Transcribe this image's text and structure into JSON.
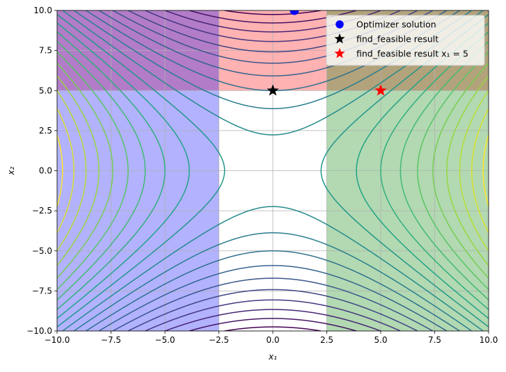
{
  "chart_data": {
    "type": "contour",
    "title": "",
    "xlabel": "x₁",
    "ylabel": "x₂",
    "xlim": [
      -10,
      10
    ],
    "ylim": [
      -10,
      10
    ],
    "xticks": [
      -10,
      -7.5,
      -5,
      -2.5,
      0,
      2.5,
      5,
      7.5,
      10
    ],
    "yticks": [
      -10,
      -7.5,
      -5,
      -2.5,
      0,
      2.5,
      5,
      7.5,
      10
    ],
    "xtick_labels": [
      "−10.0",
      "−7.5",
      "−5.0",
      "−2.5",
      "0.0",
      "2.5",
      "5.0",
      "7.5",
      "10.0"
    ],
    "ytick_labels": [
      "−10.0",
      "−7.5",
      "−5.0",
      "−2.5",
      "0.0",
      "2.5",
      "5.0",
      "7.5",
      "10.0"
    ],
    "grid": true,
    "legend_position": "top-right",
    "contour": {
      "function": "x1^2 - x2^2",
      "levels": [
        -95,
        -85,
        -75,
        -65,
        -55,
        -45,
        -35,
        -25,
        -15,
        -5,
        5,
        15,
        25,
        35,
        45,
        55,
        65,
        75,
        85,
        95
      ],
      "colormap": [
        "#440154",
        "#46327e",
        "#365c8d",
        "#277f8e",
        "#1fa187",
        "#4ac16d",
        "#a0da39",
        "#fde725"
      ]
    },
    "regions": [
      {
        "x": [
          -10,
          10
        ],
        "y": [
          5,
          10
        ],
        "color": "#ff0000",
        "alpha": 0.3
      },
      {
        "x": [
          -10,
          -2.5
        ],
        "y": [
          -10,
          10
        ],
        "color": "#0000ff",
        "alpha": 0.3
      },
      {
        "x": [
          2.5,
          10
        ],
        "y": [
          -10,
          10
        ],
        "color": "#008000",
        "alpha": 0.3
      }
    ],
    "series": [
      {
        "name": "Optimizer solution",
        "marker": "circle",
        "color": "#0000ff",
        "points": [
          [
            1.0,
            10.0
          ]
        ]
      },
      {
        "name": "find_feasible result",
        "marker": "star",
        "color": "#000000",
        "points": [
          [
            0.0,
            5.0
          ]
        ]
      },
      {
        "name": "find_feasible result x₁ = 5",
        "marker": "star",
        "color": "#ff0000",
        "points": [
          [
            5.0,
            5.0
          ]
        ]
      }
    ]
  }
}
